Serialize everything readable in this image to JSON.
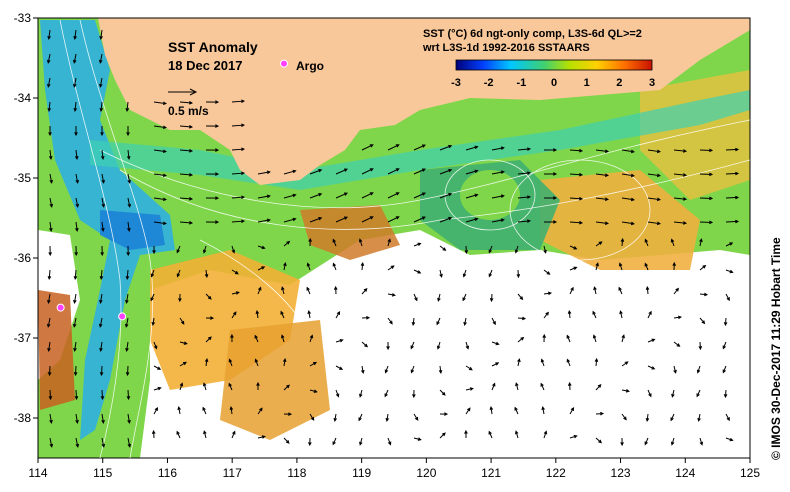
{
  "map": {
    "title": "SST Anomaly",
    "date": "18 Dec 2017",
    "legend_argo": "Argo",
    "velocity_scale": "0.5 m/s",
    "colorbar_title_line1": "SST (°C) 6d ngt-only comp, L3S-6d QL>=2",
    "colorbar_title_line2": "wrt L3S-1d 1992-2016 SSTAARS",
    "colorbar_ticks": [
      "-3",
      "-2",
      "-1",
      "0",
      "1",
      "2",
      "3"
    ],
    "colorbar_colors": [
      "#00007a",
      "#0040ff",
      "#00c8ff",
      "#40d070",
      "#b8e000",
      "#ffd000",
      "#ff7000",
      "#c81000"
    ],
    "land_color": "#f9c89a",
    "x_ticks": [
      "114",
      "115",
      "116",
      "117",
      "118",
      "119",
      "120",
      "121",
      "122",
      "123",
      "124",
      "125"
    ],
    "y_ticks": [
      "-33",
      "-34",
      "-35",
      "-36",
      "-37",
      "-38"
    ],
    "credit": "© IMOS 30-Dec-2017 11:29 Hobart Time",
    "argo_floats": [
      {
        "lon": 114.35,
        "lat": -36.62
      },
      {
        "lon": 115.3,
        "lat": -36.73
      },
      {
        "lon": 117.8,
        "lat": -33.57
      }
    ]
  }
}
